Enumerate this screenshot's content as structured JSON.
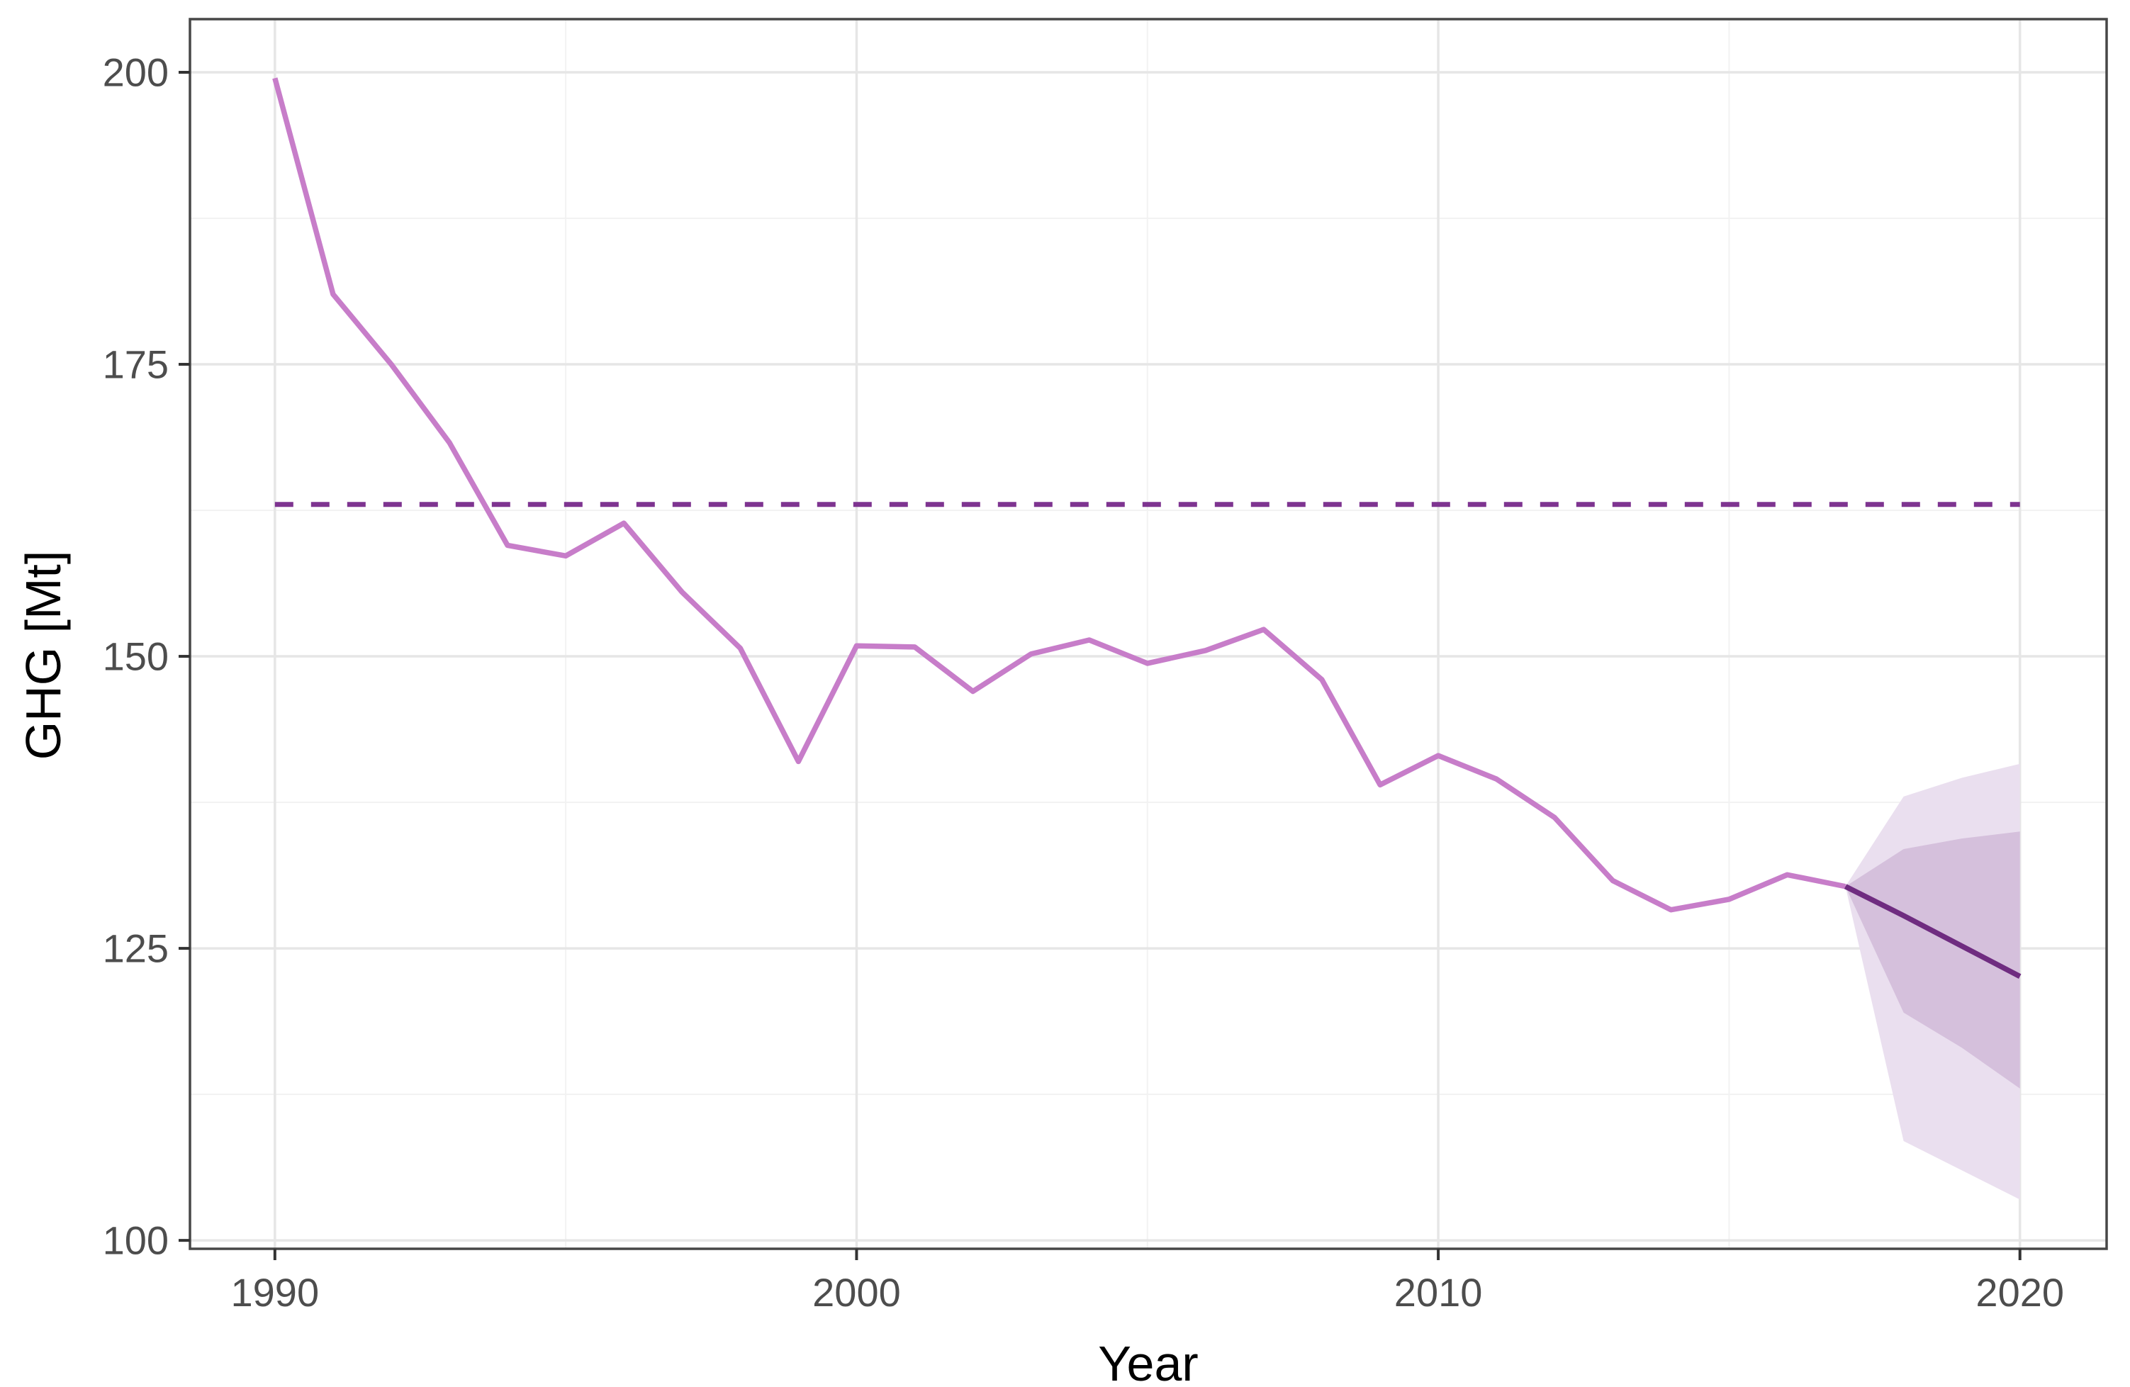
{
  "chart_data": {
    "type": "line",
    "title": "",
    "xlabel": "Year",
    "ylabel": "GHG [Mt]",
    "x_ticks": [
      1990,
      2000,
      2010,
      2020
    ],
    "x_minor_ticks": [
      1995,
      2005,
      2015
    ],
    "y_ticks": [
      100,
      125,
      150,
      175,
      200
    ],
    "y_minor_ticks": [
      112.5,
      137.5,
      162.5,
      187.5
    ],
    "xlim": [
      1988.54,
      2021.49
    ],
    "ylim": [
      99.28,
      204.55
    ],
    "grid": true,
    "legend": "none",
    "series": [
      {
        "name": "historical-emissions",
        "type": "line",
        "style": "solid",
        "x": [
          1990,
          1991,
          1992,
          1993,
          1994,
          1995,
          1996,
          1997,
          1998,
          1999,
          2000,
          2001,
          2002,
          2003,
          2004,
          2005,
          2006,
          2007,
          2008,
          2009,
          2010,
          2011,
          2012,
          2013,
          2014,
          2015,
          2016,
          2017
        ],
        "values": [
          199.5,
          181.0,
          175.0,
          168.3,
          159.5,
          158.6,
          161.4,
          155.5,
          150.7,
          141.0,
          150.9,
          150.8,
          147.0,
          150.2,
          151.4,
          149.4,
          150.5,
          152.3,
          148.0,
          139.0,
          141.5,
          139.5,
          136.2,
          130.8,
          128.3,
          129.2,
          131.3,
          130.3
        ]
      },
      {
        "name": "forecast-emissions",
        "type": "line",
        "style": "solid",
        "x": [
          2017,
          2018,
          2019,
          2020
        ],
        "values": [
          130.3,
          127.8,
          125.2,
          122.6
        ]
      },
      {
        "name": "reference-level",
        "type": "hline",
        "style": "dashed",
        "value": 163.0,
        "x_start": 1990,
        "x_end": 2020
      }
    ],
    "bands": [
      {
        "name": "confidence-band-outer",
        "x": [
          2017,
          2018,
          2019,
          2020
        ],
        "upper": [
          130.3,
          138.0,
          139.6,
          140.8
        ],
        "lower": [
          130.3,
          108.5,
          106.0,
          103.5
        ]
      },
      {
        "name": "confidence-band-inner",
        "x": [
          2017,
          2018,
          2019,
          2020
        ],
        "upper": [
          130.3,
          133.5,
          134.4,
          135.0
        ],
        "lower": [
          130.3,
          119.5,
          116.5,
          113.0
        ]
      }
    ]
  },
  "colors": {
    "historical_line": "#C77DC9",
    "forecast_line": "#6F2C80",
    "reference_line": "#7E3490",
    "band_outer_fill": "#EADFEF",
    "band_inner_fill": "#D5C0DC",
    "grid_major": "#E6E6E6",
    "grid_minor": "#F2F2F2",
    "panel_border": "#474747",
    "tick_mark": "#333333",
    "tick_text": "#4d4d4d",
    "axis_title_text": "#000000",
    "background": "#FFFFFF"
  }
}
